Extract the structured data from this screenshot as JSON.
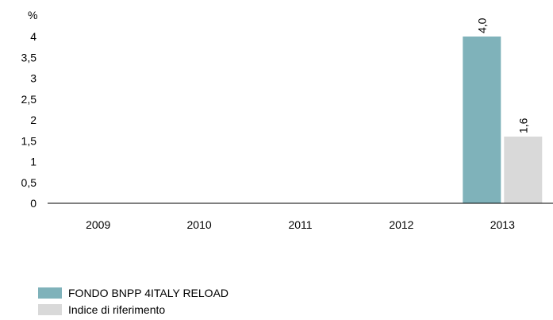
{
  "chart_data": {
    "type": "bar",
    "ylabel": "%",
    "categories": [
      "2009",
      "2010",
      "2011",
      "2012",
      "2013"
    ],
    "ylim": [
      0,
      4
    ],
    "yticks": [
      0,
      0.5,
      1,
      1.5,
      2,
      2.5,
      3,
      3.5,
      4
    ],
    "ytick_labels": [
      "0",
      "0,5",
      "1",
      "1,5",
      "2",
      "2,5",
      "3",
      "3,5",
      "4"
    ],
    "grid": false,
    "legend_position": "bottom-left",
    "series": [
      {
        "name": "FONDO BNPP 4ITALY RELOAD",
        "color": "#7fb2ba",
        "values": [
          null,
          null,
          null,
          null,
          4.0
        ],
        "labels": [
          "",
          "",
          "",
          "",
          "4,0"
        ]
      },
      {
        "name": "Indice di riferimento",
        "color": "#d9d9d9",
        "values": [
          null,
          null,
          null,
          null,
          1.6
        ],
        "labels": [
          "",
          "",
          "",
          "",
          "1,6"
        ]
      }
    ]
  }
}
